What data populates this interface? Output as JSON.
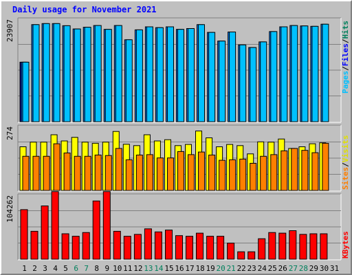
{
  "chart_data": {
    "type": "bar",
    "title": "Daily usage for November 2021",
    "categories": [
      "1",
      "2",
      "3",
      "4",
      "5",
      "6",
      "7",
      "8",
      "9",
      "10",
      "11",
      "12",
      "13",
      "14",
      "15",
      "16",
      "17",
      "18",
      "19",
      "20",
      "21",
      "22",
      "23",
      "24",
      "25",
      "26",
      "27",
      "28",
      "29",
      "30",
      "31"
    ],
    "weekend_days": [
      6,
      7,
      13,
      14,
      20,
      21,
      27,
      28
    ],
    "panels": [
      {
        "id": "hits",
        "max_label": "23907",
        "ymax": 23907,
        "series": [
          {
            "name": "Pages",
            "color": "#0000a0",
            "values": [
              13800,
              0,
              0,
              0,
              0,
              0,
              0,
              0,
              0,
              0,
              0,
              0,
              0,
              0,
              0,
              0,
              0,
              0,
              0,
              0,
              0,
              0,
              0,
              0,
              0,
              0,
              0,
              0,
              0,
              0,
              0
            ]
          },
          {
            "name": "Files",
            "color": "#0080ff",
            "values": [
              13800,
              22500,
              22750,
              22750,
              22250,
              21500,
              21900,
              22300,
              21400,
              22300,
              19000,
              21300,
              22000,
              21800,
              22000,
              21400,
              21600,
              22500,
              20700,
              18700,
              20800,
              17800,
              17200,
              18500,
              20900,
              22000,
              22300,
              22200,
              22100,
              22600,
              0
            ]
          },
          {
            "name": "Hits",
            "color": "#00c0ff",
            "values": [
              13800,
              22500,
              22750,
              22750,
              22250,
              21500,
              21900,
              22300,
              21400,
              22300,
              19000,
              21300,
              22000,
              21800,
              22000,
              21400,
              21600,
              22500,
              20700,
              18700,
              20800,
              17800,
              17200,
              18500,
              20900,
              22000,
              22300,
              22200,
              22100,
              22600,
              0
            ]
          }
        ]
      },
      {
        "id": "visits",
        "max_label": "274",
        "ymax": 274,
        "series": [
          {
            "name": "Sites",
            "color": "#ff8000",
            "values": [
              145,
              145,
              145,
              198,
              159,
              145,
              145,
              150,
              148,
              178,
              130,
              150,
              152,
              138,
              138,
              165,
              152,
              163,
              150,
              128,
              130,
              133,
              115,
              145,
              152,
              168,
              178,
              170,
              160,
              200,
              0
            ]
          },
          {
            "name": "Visits",
            "color": "#ffff00",
            "values": [
              185,
              205,
              205,
              236,
              210,
              225,
              205,
              200,
              205,
              250,
              196,
              190,
              236,
              210,
              215,
              190,
              195,
              252,
              223,
              185,
              195,
              190,
              155,
              206,
              205,
              218,
              178,
              185,
              198,
              202,
              0
            ]
          }
        ]
      },
      {
        "id": "kbytes",
        "max_label": "104262",
        "ymax": 104262,
        "series": [
          {
            "name": "KBytes",
            "color": "#ff0000",
            "values": [
              80000,
              45000,
              86000,
              109000,
              41000,
              37000,
              43000,
              94000,
              109000,
              45000,
              37000,
              40000,
              49000,
              44000,
              47000,
              38000,
              37000,
              42000,
              37000,
              37000,
              26000,
              12000,
              12000,
              33000,
              43000,
              42000,
              46000,
              40000,
              41000,
              41000,
              0
            ]
          }
        ]
      }
    ],
    "side_labels": [
      {
        "parts": [
          {
            "text": "Pages",
            "color": "#00c0ff"
          },
          {
            "text": "/",
            "color": "#000000"
          },
          {
            "text": "Files",
            "color": "#0000ff"
          },
          {
            "text": "/",
            "color": "#000000"
          },
          {
            "text": "Hits",
            "color": "#00805c"
          }
        ]
      },
      {
        "parts": [
          {
            "text": "Sites",
            "color": "#ff8000"
          },
          {
            "text": "/",
            "color": "#000000"
          },
          {
            "text": "Visits",
            "color": "#e0e000"
          }
        ]
      },
      {
        "parts": [
          {
            "text": "KBytes",
            "color": "#ff0000"
          }
        ]
      }
    ],
    "colors": {
      "title": "#0000ff",
      "weekday_tick": "#000000",
      "weekend_tick": "#00805c",
      "panel_bg": "#c0c0c0",
      "gridline": "#808080"
    }
  }
}
